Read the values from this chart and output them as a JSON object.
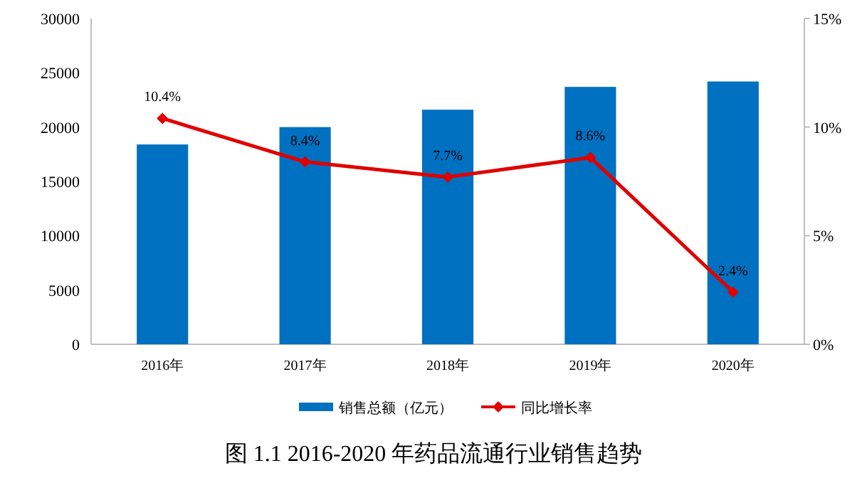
{
  "chart_data": {
    "type": "bar",
    "title": "图 1.1 2016-2020 年药品流通行业销售趋势",
    "categories": [
      "2016年",
      "2017年",
      "2018年",
      "2019年",
      "2020年"
    ],
    "series": [
      {
        "name": "销售总额（亿元）",
        "color": "#0070c0",
        "values": [
          18400,
          20000,
          21600,
          23700,
          24200
        ]
      },
      {
        "name": "同比增长率",
        "type": "line",
        "axis": "y2",
        "color": "#e00000",
        "marker": "diamond",
        "values": [
          10.4,
          8.4,
          7.7,
          8.6,
          2.4
        ],
        "value_labels": [
          "10.4%",
          "8.4%",
          "7.7%",
          "8.6%",
          "2.4%"
        ]
      }
    ],
    "ylim": [
      0,
      30000
    ],
    "yticks": [
      0,
      5000,
      10000,
      15000,
      20000,
      25000,
      30000
    ],
    "y2lim": [
      0,
      15
    ],
    "y2ticks": [
      {
        "value": 0,
        "label": "0%"
      },
      {
        "value": 5,
        "label": "5%"
      },
      {
        "value": 10,
        "label": "10%"
      },
      {
        "value": 15,
        "label": "15%"
      }
    ],
    "grid": false,
    "legend": "bottom"
  }
}
